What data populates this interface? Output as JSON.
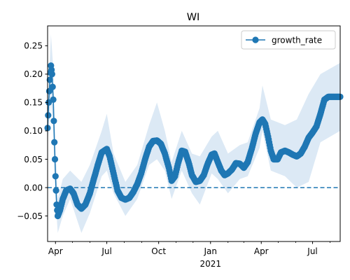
{
  "chart_data": {
    "type": "line",
    "title": "WI",
    "xlabel": "",
    "ylabel": "",
    "x_axis": "date",
    "xlim": [
      "2020-03-18",
      "2021-08-19"
    ],
    "ylim": [
      -0.095,
      0.285
    ],
    "x_ticks": [
      {
        "date": "2020-04-01",
        "label": "Apr"
      },
      {
        "date": "2020-07-01",
        "label": "Jul"
      },
      {
        "date": "2020-10-01",
        "label": "Oct"
      },
      {
        "date": "2021-01-01",
        "label": "Jan"
      },
      {
        "date": "2021-04-01",
        "label": "Apr"
      },
      {
        "date": "2021-07-01",
        "label": "Jul"
      }
    ],
    "x_minor_ticks": [
      "2020-05-01",
      "2020-06-01",
      "2020-08-01",
      "2020-09-01",
      "2020-11-01",
      "2020-12-01",
      "2021-02-01",
      "2021-03-01",
      "2021-05-01",
      "2021-06-01",
      "2021-08-01"
    ],
    "x_secondary_label": {
      "date": "2021-01-01",
      "label": "2021"
    },
    "y_ticks": [
      -0.05,
      0.0,
      0.05,
      0.1,
      0.15,
      0.2,
      0.25
    ],
    "y_tick_labels": [
      "−0.05",
      "0.00",
      "0.05",
      "0.10",
      "0.15",
      "0.20",
      "0.25"
    ],
    "reference_line": {
      "y": 0.0,
      "style": "dashed"
    },
    "legend": {
      "position": "top-right",
      "entries": [
        "growth_rate"
      ]
    },
    "series": [
      {
        "name": "growth_rate",
        "color": "#1f77b4",
        "band_color": "#dce9f5",
        "points": [
          [
            "2020-03-18",
            0.105
          ],
          [
            "2020-03-20",
            0.15
          ],
          [
            "2020-03-22",
            0.19
          ],
          [
            "2020-03-24",
            0.215
          ],
          [
            "2020-03-26",
            0.2
          ],
          [
            "2020-03-28",
            0.155
          ],
          [
            "2020-03-30",
            0.08
          ],
          [
            "2020-04-01",
            0.02
          ],
          [
            "2020-04-03",
            -0.03
          ],
          [
            "2020-04-05",
            -0.05
          ],
          [
            "2020-04-09",
            -0.04
          ],
          [
            "2020-04-14",
            -0.02
          ],
          [
            "2020-04-20",
            -0.005
          ],
          [
            "2020-04-27",
            -0.002
          ],
          [
            "2020-05-03",
            -0.01
          ],
          [
            "2020-05-10",
            -0.03
          ],
          [
            "2020-05-17",
            -0.037
          ],
          [
            "2020-05-24",
            -0.03
          ],
          [
            "2020-06-01",
            -0.01
          ],
          [
            "2020-06-08",
            0.015
          ],
          [
            "2020-06-15",
            0.04
          ],
          [
            "2020-06-22",
            0.062
          ],
          [
            "2020-07-01",
            0.068
          ],
          [
            "2020-07-06",
            0.055
          ],
          [
            "2020-07-13",
            0.025
          ],
          [
            "2020-07-20",
            -0.005
          ],
          [
            "2020-07-27",
            -0.018
          ],
          [
            "2020-08-03",
            -0.021
          ],
          [
            "2020-08-10",
            -0.018
          ],
          [
            "2020-08-17",
            -0.008
          ],
          [
            "2020-08-24",
            0.006
          ],
          [
            "2020-08-31",
            0.025
          ],
          [
            "2020-09-07",
            0.05
          ],
          [
            "2020-09-14",
            0.072
          ],
          [
            "2020-09-21",
            0.082
          ],
          [
            "2020-09-28",
            0.083
          ],
          [
            "2020-10-05",
            0.077
          ],
          [
            "2020-10-12",
            0.06
          ],
          [
            "2020-10-19",
            0.035
          ],
          [
            "2020-10-24",
            0.012
          ],
          [
            "2020-10-30",
            0.02
          ],
          [
            "2020-11-05",
            0.045
          ],
          [
            "2020-11-11",
            0.065
          ],
          [
            "2020-11-17",
            0.063
          ],
          [
            "2020-11-23",
            0.045
          ],
          [
            "2020-11-29",
            0.022
          ],
          [
            "2020-12-06",
            0.01
          ],
          [
            "2020-12-13",
            0.012
          ],
          [
            "2020-12-20",
            0.022
          ],
          [
            "2020-12-27",
            0.042
          ],
          [
            "2021-01-03",
            0.058
          ],
          [
            "2021-01-08",
            0.06
          ],
          [
            "2021-01-14",
            0.045
          ],
          [
            "2021-01-20",
            0.03
          ],
          [
            "2021-01-26",
            0.022
          ],
          [
            "2021-02-01",
            0.025
          ],
          [
            "2021-02-08",
            0.032
          ],
          [
            "2021-02-15",
            0.043
          ],
          [
            "2021-02-22",
            0.042
          ],
          [
            "2021-03-01",
            0.035
          ],
          [
            "2021-03-08",
            0.045
          ],
          [
            "2021-03-15",
            0.068
          ],
          [
            "2021-03-22",
            0.095
          ],
          [
            "2021-03-29",
            0.115
          ],
          [
            "2021-04-03",
            0.12
          ],
          [
            "2021-04-08",
            0.112
          ],
          [
            "2021-04-13",
            0.09
          ],
          [
            "2021-04-18",
            0.065
          ],
          [
            "2021-04-23",
            0.05
          ],
          [
            "2021-04-30",
            0.05
          ],
          [
            "2021-05-06",
            0.062
          ],
          [
            "2021-05-13",
            0.065
          ],
          [
            "2021-05-20",
            0.062
          ],
          [
            "2021-05-27",
            0.058
          ],
          [
            "2021-06-03",
            0.055
          ],
          [
            "2021-06-10",
            0.06
          ],
          [
            "2021-06-17",
            0.072
          ],
          [
            "2021-06-24",
            0.088
          ],
          [
            "2021-07-01",
            0.097
          ],
          [
            "2021-07-08",
            0.108
          ],
          [
            "2021-07-15",
            0.13
          ],
          [
            "2021-07-22",
            0.155
          ],
          [
            "2021-07-29",
            0.16
          ],
          [
            "2021-08-19",
            0.16
          ]
        ],
        "band": [
          [
            "2020-03-18",
            0.08,
            0.14
          ],
          [
            "2020-03-24",
            0.15,
            0.27
          ],
          [
            "2020-03-28",
            0.1,
            0.21
          ],
          [
            "2020-04-01",
            -0.02,
            0.07
          ],
          [
            "2020-04-05",
            -0.08,
            -0.02
          ],
          [
            "2020-04-14",
            -0.05,
            0.015
          ],
          [
            "2020-04-27",
            -0.02,
            0.03
          ],
          [
            "2020-05-17",
            -0.08,
            0.01
          ],
          [
            "2020-06-01",
            -0.045,
            0.04
          ],
          [
            "2020-06-22",
            0.02,
            0.1
          ],
          [
            "2020-07-01",
            0.03,
            0.13
          ],
          [
            "2020-07-13",
            -0.01,
            0.06
          ],
          [
            "2020-08-03",
            -0.05,
            0.01
          ],
          [
            "2020-08-24",
            -0.02,
            0.04
          ],
          [
            "2020-09-14",
            0.04,
            0.11
          ],
          [
            "2020-09-28",
            0.05,
            0.15
          ],
          [
            "2020-10-12",
            0.03,
            0.1
          ],
          [
            "2020-10-24",
            -0.02,
            0.045
          ],
          [
            "2020-11-11",
            0.03,
            0.1
          ],
          [
            "2020-11-29",
            -0.01,
            0.06
          ],
          [
            "2020-12-13",
            -0.03,
            0.055
          ],
          [
            "2021-01-03",
            0.025,
            0.09
          ],
          [
            "2021-01-14",
            0.015,
            0.1
          ],
          [
            "2021-02-01",
            -0.01,
            0.06
          ],
          [
            "2021-02-22",
            0.015,
            0.075
          ],
          [
            "2021-03-08",
            0.02,
            0.08
          ],
          [
            "2021-03-29",
            0.07,
            0.14
          ],
          [
            "2021-04-03",
            0.1,
            0.18
          ],
          [
            "2021-04-18",
            0.03,
            0.12
          ],
          [
            "2021-05-13",
            0.02,
            0.11
          ],
          [
            "2021-06-03",
            0.0,
            0.12
          ],
          [
            "2021-06-24",
            0.01,
            0.165
          ],
          [
            "2021-07-15",
            0.08,
            0.2
          ],
          [
            "2021-08-19",
            0.1,
            0.22
          ]
        ]
      }
    ]
  }
}
